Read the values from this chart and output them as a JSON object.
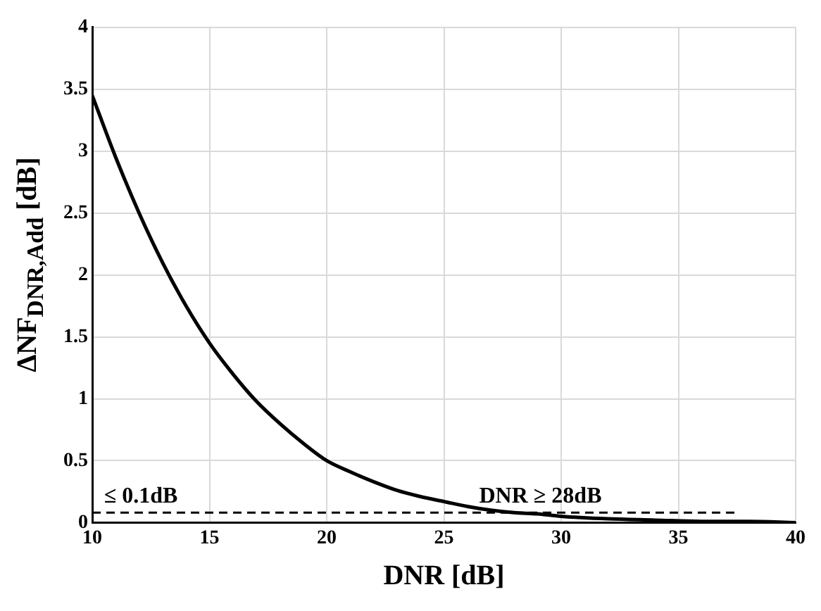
{
  "chart_data": {
    "type": "line",
    "xlabel": "DNR [dB]",
    "ylabel": "ΔNF$_{DNR,Add}$ [dB]",
    "x": [
      10,
      11,
      12,
      13,
      14,
      15,
      16,
      17,
      18,
      19,
      20,
      21,
      22,
      23,
      24,
      25,
      26,
      27,
      28,
      29,
      30,
      32,
      34,
      36,
      38,
      40
    ],
    "series": [
      {
        "color": "#000000",
        "values": [
          3.45,
          2.95,
          2.5,
          2.1,
          1.75,
          1.45,
          1.2,
          0.98,
          0.8,
          0.64,
          0.5,
          0.41,
          0.33,
          0.26,
          0.21,
          0.17,
          0.13,
          0.1,
          0.08,
          0.07,
          0.05,
          0.03,
          0.02,
          0.01,
          0.01,
          0
        ]
      },
      {
        "color": "#000000",
        "line_style": "dashed",
        "x": [
          10,
          37.5
        ],
        "values": [
          0.08,
          0.08
        ]
      }
    ],
    "xlim": [
      10,
      40
    ],
    "xticks": [
      10,
      15,
      20,
      25,
      30,
      35,
      40
    ],
    "ylim": [
      0,
      4
    ],
    "yticks": [
      0,
      0.5,
      1,
      1.5,
      2,
      2.5,
      3,
      3.5,
      4
    ],
    "grid": true,
    "legend": false,
    "marker": "none",
    "line_style": "solid",
    "annotations": [
      {
        "text": "≤ 0.1dB",
        "x": 10.5,
        "y": 0.12
      },
      {
        "text": "DNR ≥ 28dB",
        "x": 26.5,
        "y": 0.12
      }
    ]
  }
}
